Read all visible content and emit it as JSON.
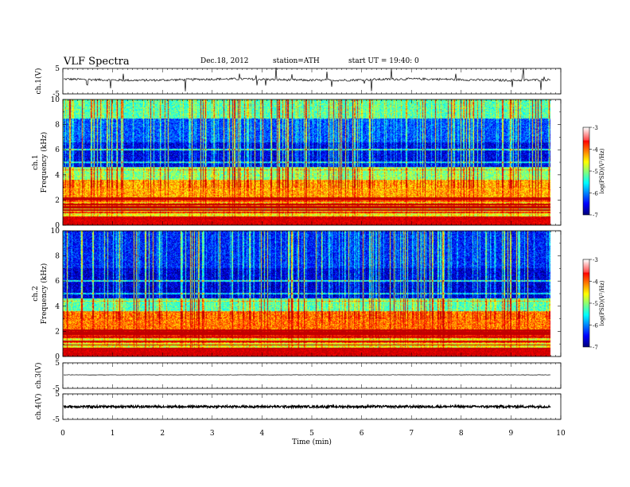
{
  "header": {
    "title": "VLF  Spectra",
    "date": "Dec.18, 2012",
    "station": "station=ATH",
    "start": "start  UT  =   19:40: 0"
  },
  "chart_data": [
    {
      "type": "line",
      "panel": "ch1-waveform",
      "ylabel": "ch.1(V)",
      "ylim": [
        -5,
        5
      ],
      "yticks": [
        "5",
        "-5"
      ],
      "baseline": 0.6,
      "noise": "spiky",
      "color": "#000000"
    },
    {
      "type": "heatmap",
      "panel": "ch1-spectrogram",
      "ylabel_channel": "ch.1",
      "ylabel": "Frequency  (kHz)",
      "ylim": [
        0,
        10
      ],
      "yticks": [
        "0",
        "2",
        "4",
        "6",
        "8",
        "10"
      ],
      "colorbar": {
        "label": "log(PSD)(V²/Hz)",
        "range": [
          -7,
          -3
        ],
        "ticks": [
          "-3",
          "-4",
          "-5",
          "-6",
          "-7"
        ]
      },
      "bands": [
        {
          "from": 0,
          "to": 0.6,
          "level": -3.2
        },
        {
          "from": 0.6,
          "to": 2.0,
          "level": -4.6
        },
        {
          "from": 2.0,
          "to": 3.6,
          "level": -4.2
        },
        {
          "from": 3.6,
          "to": 4.6,
          "level": -5.0
        },
        {
          "from": 4.6,
          "to": 6.6,
          "level": -6.6
        },
        {
          "from": 6.6,
          "to": 8.5,
          "level": -6.2
        },
        {
          "from": 8.5,
          "to": 10,
          "level": -5.2
        }
      ],
      "data_end_min": 9.8
    },
    {
      "type": "heatmap",
      "panel": "ch2-spectrogram",
      "ylabel_channel": "ch.2",
      "ylabel": "Frequency  (kHz)",
      "ylim": [
        0,
        10
      ],
      "yticks": [
        "0",
        "2",
        "4",
        "6",
        "8",
        "10"
      ],
      "colorbar": {
        "label": "log(PSD)(V²/Hz)",
        "range": [
          -7,
          -3
        ],
        "ticks": [
          "-3",
          "-4",
          "-5",
          "-6",
          "-7"
        ]
      },
      "bands": [
        {
          "from": 0,
          "to": 0.6,
          "level": -3.2
        },
        {
          "from": 0.6,
          "to": 2.0,
          "level": -4.6
        },
        {
          "from": 2.0,
          "to": 3.6,
          "level": -4.0
        },
        {
          "from": 3.6,
          "to": 4.6,
          "level": -5.2
        },
        {
          "from": 4.6,
          "to": 7.0,
          "level": -6.7
        },
        {
          "from": 7.0,
          "to": 10,
          "level": -6.4
        }
      ],
      "data_end_min": 9.8
    },
    {
      "type": "line",
      "panel": "ch3-waveform",
      "ylabel": "ch.3(V)",
      "ylim": [
        -5,
        5
      ],
      "yticks": [
        "5",
        "-5"
      ],
      "baseline": 0.3,
      "noise": "flat",
      "color": "#000000"
    },
    {
      "type": "line",
      "panel": "ch4-waveform",
      "ylabel": "ch.4(V)",
      "ylim": [
        -5,
        5
      ],
      "yticks": [
        "5",
        "-5"
      ],
      "baseline": 0.0,
      "noise": "thick",
      "color": "#000000"
    }
  ],
  "xaxis": {
    "label": "Time  (min)",
    "xlim": [
      0,
      10
    ],
    "ticks": [
      "0",
      "1",
      "2",
      "3",
      "4",
      "5",
      "6",
      "7",
      "8",
      "9",
      "10"
    ]
  }
}
